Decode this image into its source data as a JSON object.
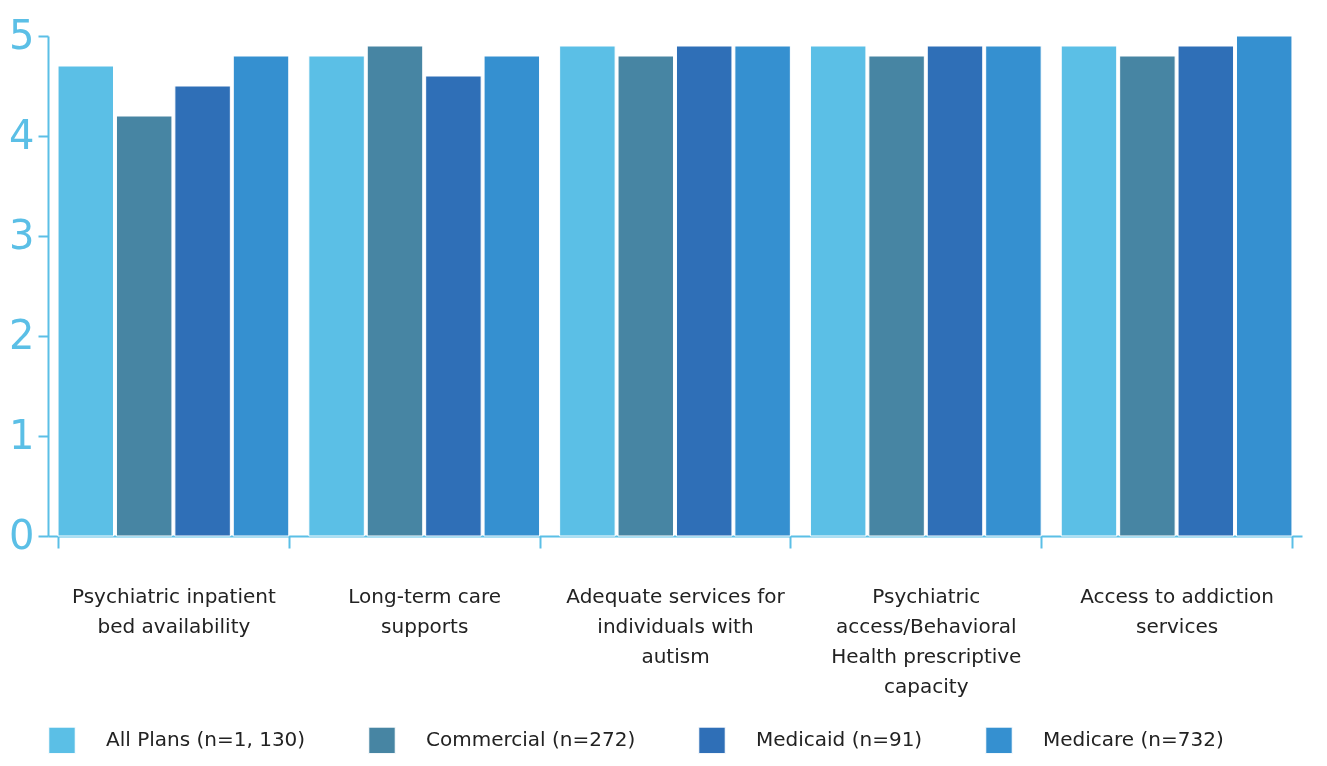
{
  "chart_data": {
    "type": "bar",
    "categories": [
      "Psychiatric inpatient bed availability",
      "Long-term care supports",
      "Adequate services for individuals with autism",
      "Psychiatric access/Behavioral Health prescriptive capacity",
      "Access to addiction services"
    ],
    "series": [
      {
        "name": "All Plans (n=1, 130)",
        "color": "#5bbfe6",
        "values": [
          4.7,
          4.8,
          4.9,
          4.9,
          4.9
        ]
      },
      {
        "name": "Commercial (n=272)",
        "color": "#4785a3",
        "values": [
          4.2,
          4.9,
          4.8,
          4.8,
          4.8
        ]
      },
      {
        "name": "Medicaid (n=91)",
        "color": "#2f6fb7",
        "values": [
          4.5,
          4.6,
          4.9,
          4.9,
          4.9
        ]
      },
      {
        "name": "Medicare (n=732)",
        "color": "#3590d0",
        "values": [
          4.8,
          4.8,
          4.9,
          4.9,
          5.0
        ]
      }
    ],
    "ylim": [
      0,
      5
    ],
    "yticks": [
      0,
      1,
      2,
      3,
      4,
      5
    ],
    "grid": false,
    "legend": "bottom"
  }
}
